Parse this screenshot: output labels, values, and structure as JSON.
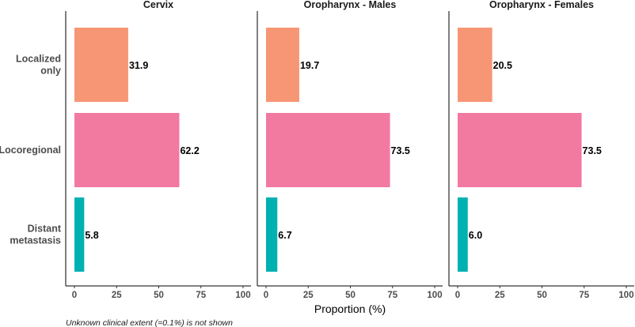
{
  "chart_data": {
    "type": "bar",
    "orientation": "horizontal",
    "categories": [
      "Localized only",
      "Locoregional",
      "Distant metastasis"
    ],
    "category_label_lines": [
      [
        "Localized",
        "only"
      ],
      [
        "Locoregional"
      ],
      [
        "Distant",
        "metastasis"
      ]
    ],
    "facets": [
      {
        "title": "Cervix",
        "values": [
          31.9,
          62.2,
          5.8
        ],
        "labels": [
          "31.9",
          "62.2",
          "5.8"
        ]
      },
      {
        "title": "Oropharynx - Males",
        "values": [
          19.7,
          73.5,
          6.7
        ],
        "labels": [
          "19.7",
          "73.5",
          "6.7"
        ]
      },
      {
        "title": "Oropharynx - Females",
        "values": [
          20.5,
          73.5,
          6.0
        ],
        "labels": [
          "20.5",
          "73.5",
          "6.0"
        ]
      }
    ],
    "category_colors": [
      "#F79675",
      "#F279A0",
      "#00B1B2"
    ],
    "xlim": [
      0,
      100
    ],
    "x_ticks": [
      0,
      25,
      50,
      75,
      100
    ],
    "xlabel": "Proportion (%)",
    "caption": "Unknown clinical extent (=0.1%) is not shown",
    "grid": false,
    "legend": "none"
  }
}
